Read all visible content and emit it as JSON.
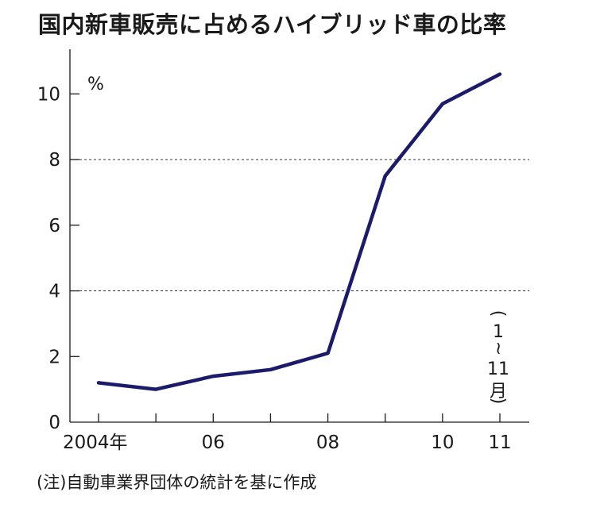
{
  "chart_data": {
    "type": "line",
    "title": "国内新車販売に占めるハイブリッド車の比率",
    "unit_label": "%",
    "x": [
      2004,
      2005,
      2006,
      2007,
      2008,
      2009,
      2010,
      2011
    ],
    "x_tick_values": [
      2004,
      2006,
      2008,
      2010,
      2011
    ],
    "x_tick_labels": [
      "2004年",
      "06",
      "08",
      "10",
      "11"
    ],
    "series": [
      {
        "values": [
          1.2,
          1.0,
          1.4,
          1.6,
          2.1,
          7.5,
          9.7,
          10.6
        ],
        "color": "#1c1a6b"
      }
    ],
    "xlim": [
      2003.5,
      2011.5
    ],
    "ylim": [
      0,
      11
    ],
    "y_ticks": [
      0,
      2,
      4,
      6,
      8,
      10
    ],
    "y_tick_labels": [
      "0",
      "2",
      "4",
      "6",
      "8",
      "10"
    ],
    "gridlines_at": [
      4,
      8
    ],
    "grid_style": "dashed",
    "period_note": [
      "(",
      "1",
      "~",
      "11",
      "月",
      ")"
    ],
    "footnote": "(注)自動車業界団体の統計を基に作成"
  }
}
